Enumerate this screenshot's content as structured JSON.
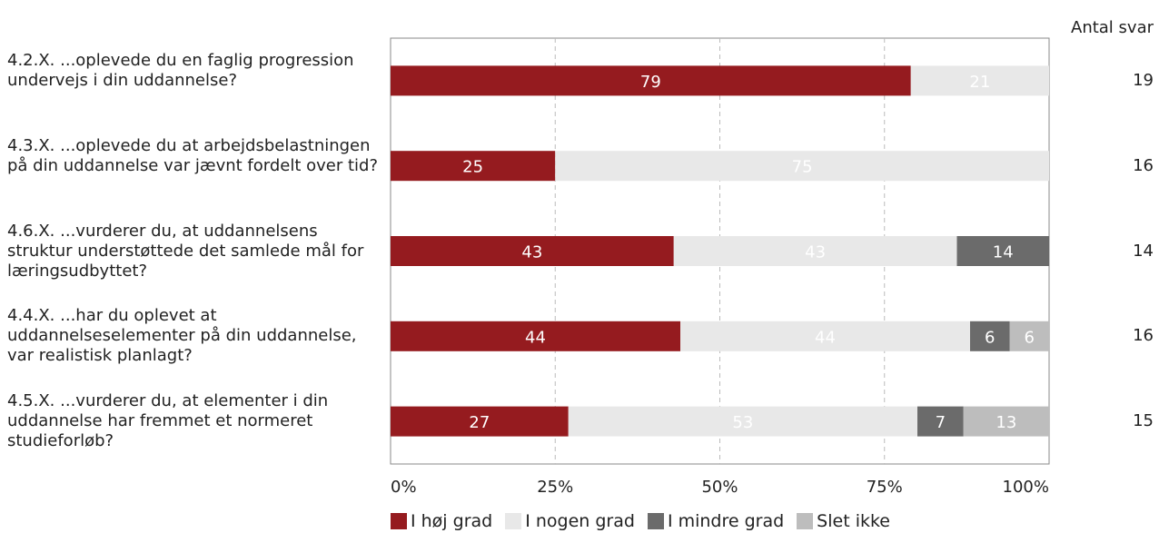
{
  "chart_data": {
    "type": "bar",
    "orientation": "horizontal",
    "stacked": true,
    "percent": true,
    "categories": [
      "4.2.X. ...oplevede du en faglig progression undervejs i din uddannelse?",
      "4.3.X. ...oplevede du at arbejdsbelastningen på din uddannelse var jævnt fordelt over tid?",
      "4.6.X. ...vurderer du, at uddannelsens struktur understøttede det samlede mål for læringsudbyttet?",
      "4.4.X. ...har du oplevet at uddannelseselementer på din uddannelse, var realistisk planlagt?",
      "4.5.X. ...vurderer du, at elementer i din uddannelse har fremmet et normeret studieforløb?"
    ],
    "series": [
      {
        "name": "I høj grad",
        "color": "#951b1f",
        "text_color": "#ffffff",
        "values": [
          79,
          25,
          43,
          44,
          27
        ]
      },
      {
        "name": "I nogen grad",
        "color": "#e8e8e8",
        "text_color": "#ffffff",
        "values": [
          21,
          75,
          43,
          44,
          53
        ]
      },
      {
        "name": "I mindre grad",
        "color": "#6b6b6b",
        "text_color": "#ffffff",
        "values": [
          0,
          0,
          14,
          6,
          7
        ]
      },
      {
        "name": "Slet ikke",
        "color": "#bdbdbd",
        "text_color": "#ffffff",
        "values": [
          0,
          0,
          0,
          6,
          13
        ]
      }
    ],
    "xlim": [
      0,
      100
    ],
    "xticks": [
      "0%",
      "25%",
      "50%",
      "75%",
      "100%"
    ],
    "gridlines": "dashed",
    "legend_position": "bottom",
    "counts_header": "Antal svar",
    "counts": [
      19,
      16,
      14,
      16,
      15
    ]
  }
}
